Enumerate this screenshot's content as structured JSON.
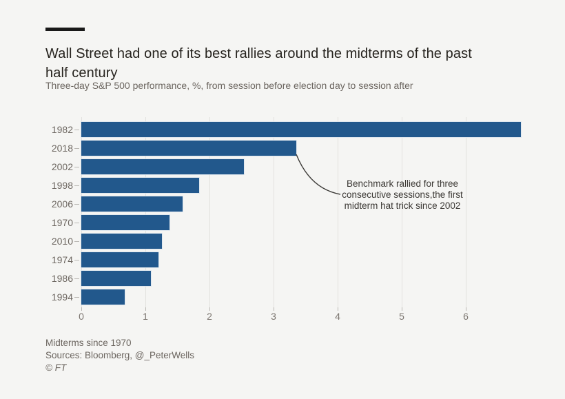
{
  "header": {
    "title": "Wall Street had one of its best rallies around the midterms of the past half century",
    "subtitle": "Three-day S&P 500 performance, %, from session before election day to session after"
  },
  "chart_data": {
    "type": "bar",
    "orientation": "horizontal",
    "title": "Wall Street had one of its best rallies around the midterms of the past half century",
    "subtitle": "Three-day S&P 500 performance, %, from session before election day to session after",
    "categories": [
      "1982",
      "2018",
      "2002",
      "1998",
      "2006",
      "1970",
      "2010",
      "1974",
      "1986",
      "1994"
    ],
    "values": [
      6.86,
      3.35,
      2.54,
      1.84,
      1.58,
      1.38,
      1.26,
      1.2,
      1.09,
      0.68
    ],
    "xlabel": "",
    "ylabel": "",
    "xlim": [
      0,
      7.2
    ],
    "xticks": [
      0,
      1,
      2,
      3,
      4,
      5,
      6
    ],
    "grid": "vertical",
    "bar_color": "#22588C",
    "annotation": {
      "target_category": "2018",
      "lines": [
        "Benchmark rallied for three",
        "consecutive sessions,the first",
        "midterm hat trick since 2002"
      ]
    }
  },
  "annotation": {
    "lines": {
      "0": "Benchmark rallied for three",
      "1": "consecutive sessions,the first",
      "2": "midterm hat trick since 2002"
    }
  },
  "footer": {
    "note": "Midterms since 1970",
    "sources": "Sources: Bloomberg, @_PeterWells",
    "copyright": "© FT"
  },
  "colors": {
    "background": "#f5f5f3",
    "bar": "#22588C",
    "accent_bar": "#191919",
    "gridline": "#e2e1de",
    "annotation_line": "#3c3a37"
  }
}
